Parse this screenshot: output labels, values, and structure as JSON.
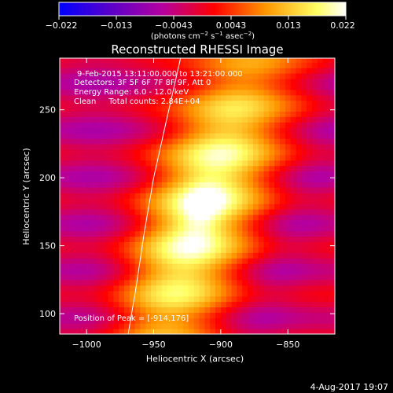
{
  "colorbar": {
    "ticks": [
      "−0.022",
      "−0.013",
      "−0.0043",
      "0.0043",
      "0.013",
      "0.022"
    ],
    "unit_parts": [
      "(photons cm",
      "−2",
      " s",
      "−1",
      " asec",
      "−2",
      ")"
    ],
    "range": [
      -0.022,
      0.022
    ],
    "colormap": [
      "#0000ff",
      "#5a00c8",
      "#b400a0",
      "#ff0000",
      "#ff9600",
      "#ffff64",
      "#ffffff"
    ]
  },
  "chart_data": {
    "type": "heatmap",
    "title": "Reconstructed RHESSI Image",
    "xlabel": "Heliocentric X (arcsec)",
    "ylabel": "Heliocentric Y (arcsec)",
    "xlim": [
      -1020,
      -815
    ],
    "ylim": [
      85,
      288
    ],
    "xticks": [
      -1000,
      -950,
      -900,
      -850
    ],
    "yticks": [
      100,
      150,
      200,
      250
    ],
    "xtick_labels": [
      "−1000",
      "−950",
      "−900",
      "−850"
    ],
    "ytick_labels": [
      "100",
      "150",
      "200",
      "250"
    ],
    "peak": [
      -914,
      176
    ],
    "annotations": [
      "9-Feb-2015 13:11:00.000 to 13:21:00.000",
      "Detectors: 3F 5F 6F 7F 8F 9F, Att 0",
      "Energy Range: 6.0 - 12.0 keV",
      "Clean     Total counts: 2.84E+04",
      "Position of Peak = [-914,176]"
    ],
    "limb_curve": [
      [
        -969,
        85
      ],
      [
        -963,
        120
      ],
      [
        -957,
        160
      ],
      [
        -950,
        200
      ],
      [
        -941,
        240
      ],
      [
        -930,
        288
      ]
    ]
  },
  "footer": {
    "date": "4-Aug-2017 19:07"
  }
}
